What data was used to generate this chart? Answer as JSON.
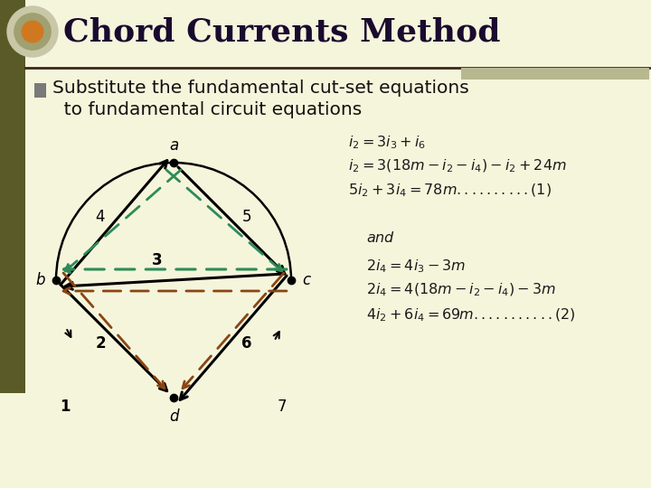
{
  "slide_bg": "#f5f5dc",
  "title": "Chord Currents Method",
  "title_color": "#1a0a2e",
  "title_fontsize": 26,
  "bullet_color": "#7a7a7a",
  "subtitle_line1": "Substitute the fundamental cut-set equations",
  "subtitle_line2": "  to fundamental circuit equations",
  "subtitle_fontsize": 14.5,
  "subtitle_color": "#111111",
  "accent_bar_color": "#b8b890",
  "left_bar_color": "#5a5a28",
  "black_color": "#000000",
  "green_color": "#2e8b57",
  "brown_color": "#8b4513",
  "separator_color": "#3a2818",
  "node_color": "#000000",
  "eq_color": "#1a1a1a",
  "eq_fontsize": 11.5
}
